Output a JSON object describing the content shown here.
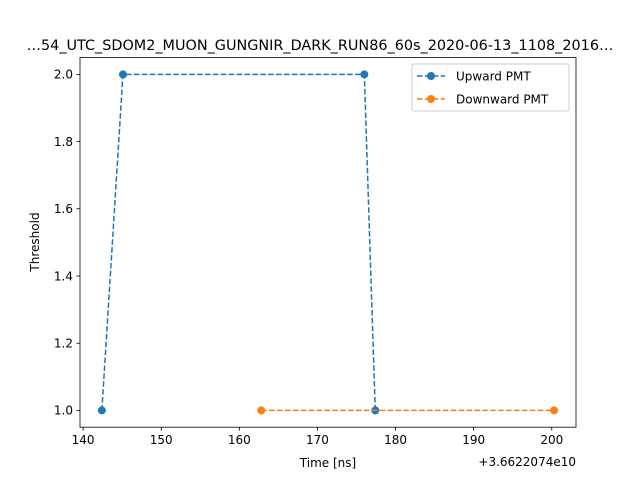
{
  "chart_data": {
    "type": "line",
    "title": "…54_UTC_SDOM2_MUON_GUNGNIR_DARK_RUN86_60s_2020-06-13_1108_2016…",
    "xlabel": "Time [ns]",
    "ylabel": "Threshold",
    "x_offset_label": "+3.6622074e10",
    "xlim": [
      139.6,
      203.1
    ],
    "ylim": [
      0.95,
      2.05
    ],
    "xticks": [
      140,
      150,
      160,
      170,
      180,
      190,
      200
    ],
    "yticks": [
      1.0,
      1.2,
      1.4,
      1.6,
      1.8,
      2.0
    ],
    "ytick_labels": [
      "1.0",
      "1.2",
      "1.4",
      "1.6",
      "1.8",
      "2.0"
    ],
    "grid": false,
    "legend_position": "top-right",
    "series": [
      {
        "name": "Upward PMT",
        "color": "#1f77b4",
        "linestyle": "dashed",
        "marker": "circle",
        "x": [
          142.4,
          145.1,
          176.0,
          177.4
        ],
        "y": [
          1.0,
          2.0,
          2.0,
          1.0
        ]
      },
      {
        "name": "Downward PMT",
        "color": "#ff7f0e",
        "linestyle": "dashed",
        "marker": "circle",
        "x": [
          162.8,
          200.3
        ],
        "y": [
          1.0,
          1.0
        ]
      }
    ]
  }
}
